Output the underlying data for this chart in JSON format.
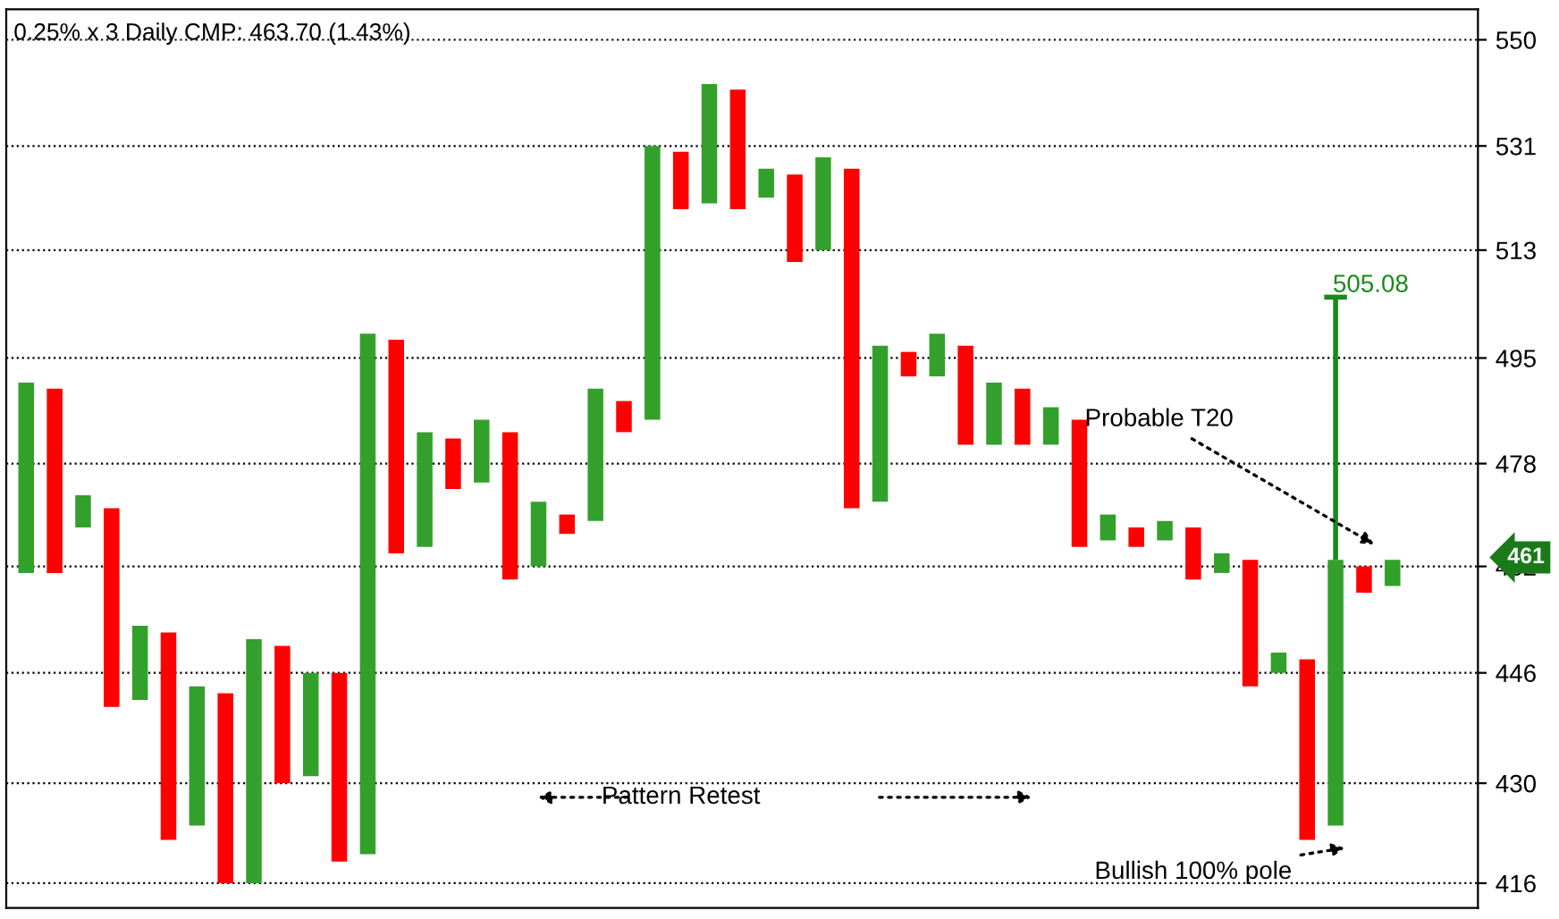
{
  "chart_data": {
    "type": "bar",
    "title": "0.25% x 3 Daily CMP: 463.70 (1.43%)",
    "categories": [
      null,
      null,
      null,
      null,
      null,
      null,
      null,
      null,
      null,
      null,
      null,
      null,
      null,
      null,
      null,
      null,
      null,
      null,
      null,
      null,
      null,
      null,
      null,
      null,
      null,
      null,
      null,
      null,
      null,
      null,
      null,
      null,
      null,
      null,
      null,
      null,
      null,
      null,
      null,
      null,
      null,
      null,
      null,
      null,
      null,
      null,
      null,
      null,
      null
    ],
    "colors": [
      "#33a02c",
      "#ff0000",
      "#33a02c",
      "#ff0000",
      "#33a02c",
      "#ff0000",
      "#33a02c",
      "#ff0000",
      "#33a02c",
      "#ff0000",
      "#33a02c",
      "#ff0000",
      "#33a02c",
      "#ff0000",
      "#33a02c",
      "#ff0000",
      "#33a02c",
      "#ff0000",
      "#33a02c",
      "#ff0000",
      "#33a02c",
      "#ff0000",
      "#33a02c",
      "#ff0000",
      "#33a02c",
      "#ff0000",
      "#33a02c",
      "#ff0000",
      "#33a02c",
      "#ff0000",
      "#33a02c",
      "#ff0000",
      "#33a02c",
      "#ff0000",
      "#33a02c",
      "#ff0000",
      "#33a02c",
      "#ff0000",
      "#33a02c",
      "#ff0000",
      "#33a02c",
      "#ff0000",
      "#33a02c",
      "#ff0000",
      "#33a02c",
      "#ff0000",
      "#33a02c",
      "#ff0000",
      "#33a02c"
    ],
    "base": [
      461,
      461,
      468,
      441,
      442,
      422,
      424,
      416,
      416,
      430,
      431,
      419,
      420,
      464,
      465,
      474,
      475,
      460,
      462,
      467,
      469,
      483,
      485,
      520,
      521,
      520,
      522,
      511,
      513,
      471,
      472,
      492,
      492,
      481,
      481,
      481,
      481,
      465,
      466,
      465,
      466,
      460,
      461,
      444,
      446,
      422,
      424,
      458,
      459
    ],
    "values": [
      30,
      29,
      5,
      30,
      11,
      30,
      20,
      27,
      35,
      20,
      15,
      27,
      79,
      34,
      18,
      8,
      10,
      23,
      10,
      3,
      21,
      5,
      46,
      10,
      21,
      21,
      5,
      15,
      16,
      56,
      25,
      4,
      7,
      16,
      10,
      9,
      6,
      20,
      4,
      3,
      3,
      8,
      3,
      19,
      3,
      26,
      39,
      4,
      4
    ],
    "log": "y",
    "ylim": [
      412.6,
      555.6
    ],
    "yticks": [
      416,
      430,
      446,
      462,
      478,
      495,
      513,
      531,
      550
    ],
    "grid": "y",
    "ref_lines": [
      {
        "axis": "y",
        "value": 505.08,
        "label": "505.08",
        "color": "#1a8a1a"
      }
    ],
    "annotations": [
      "Probable T20",
      "Pattern Retest",
      "Bullish 100% pole",
      "461"
    ]
  }
}
